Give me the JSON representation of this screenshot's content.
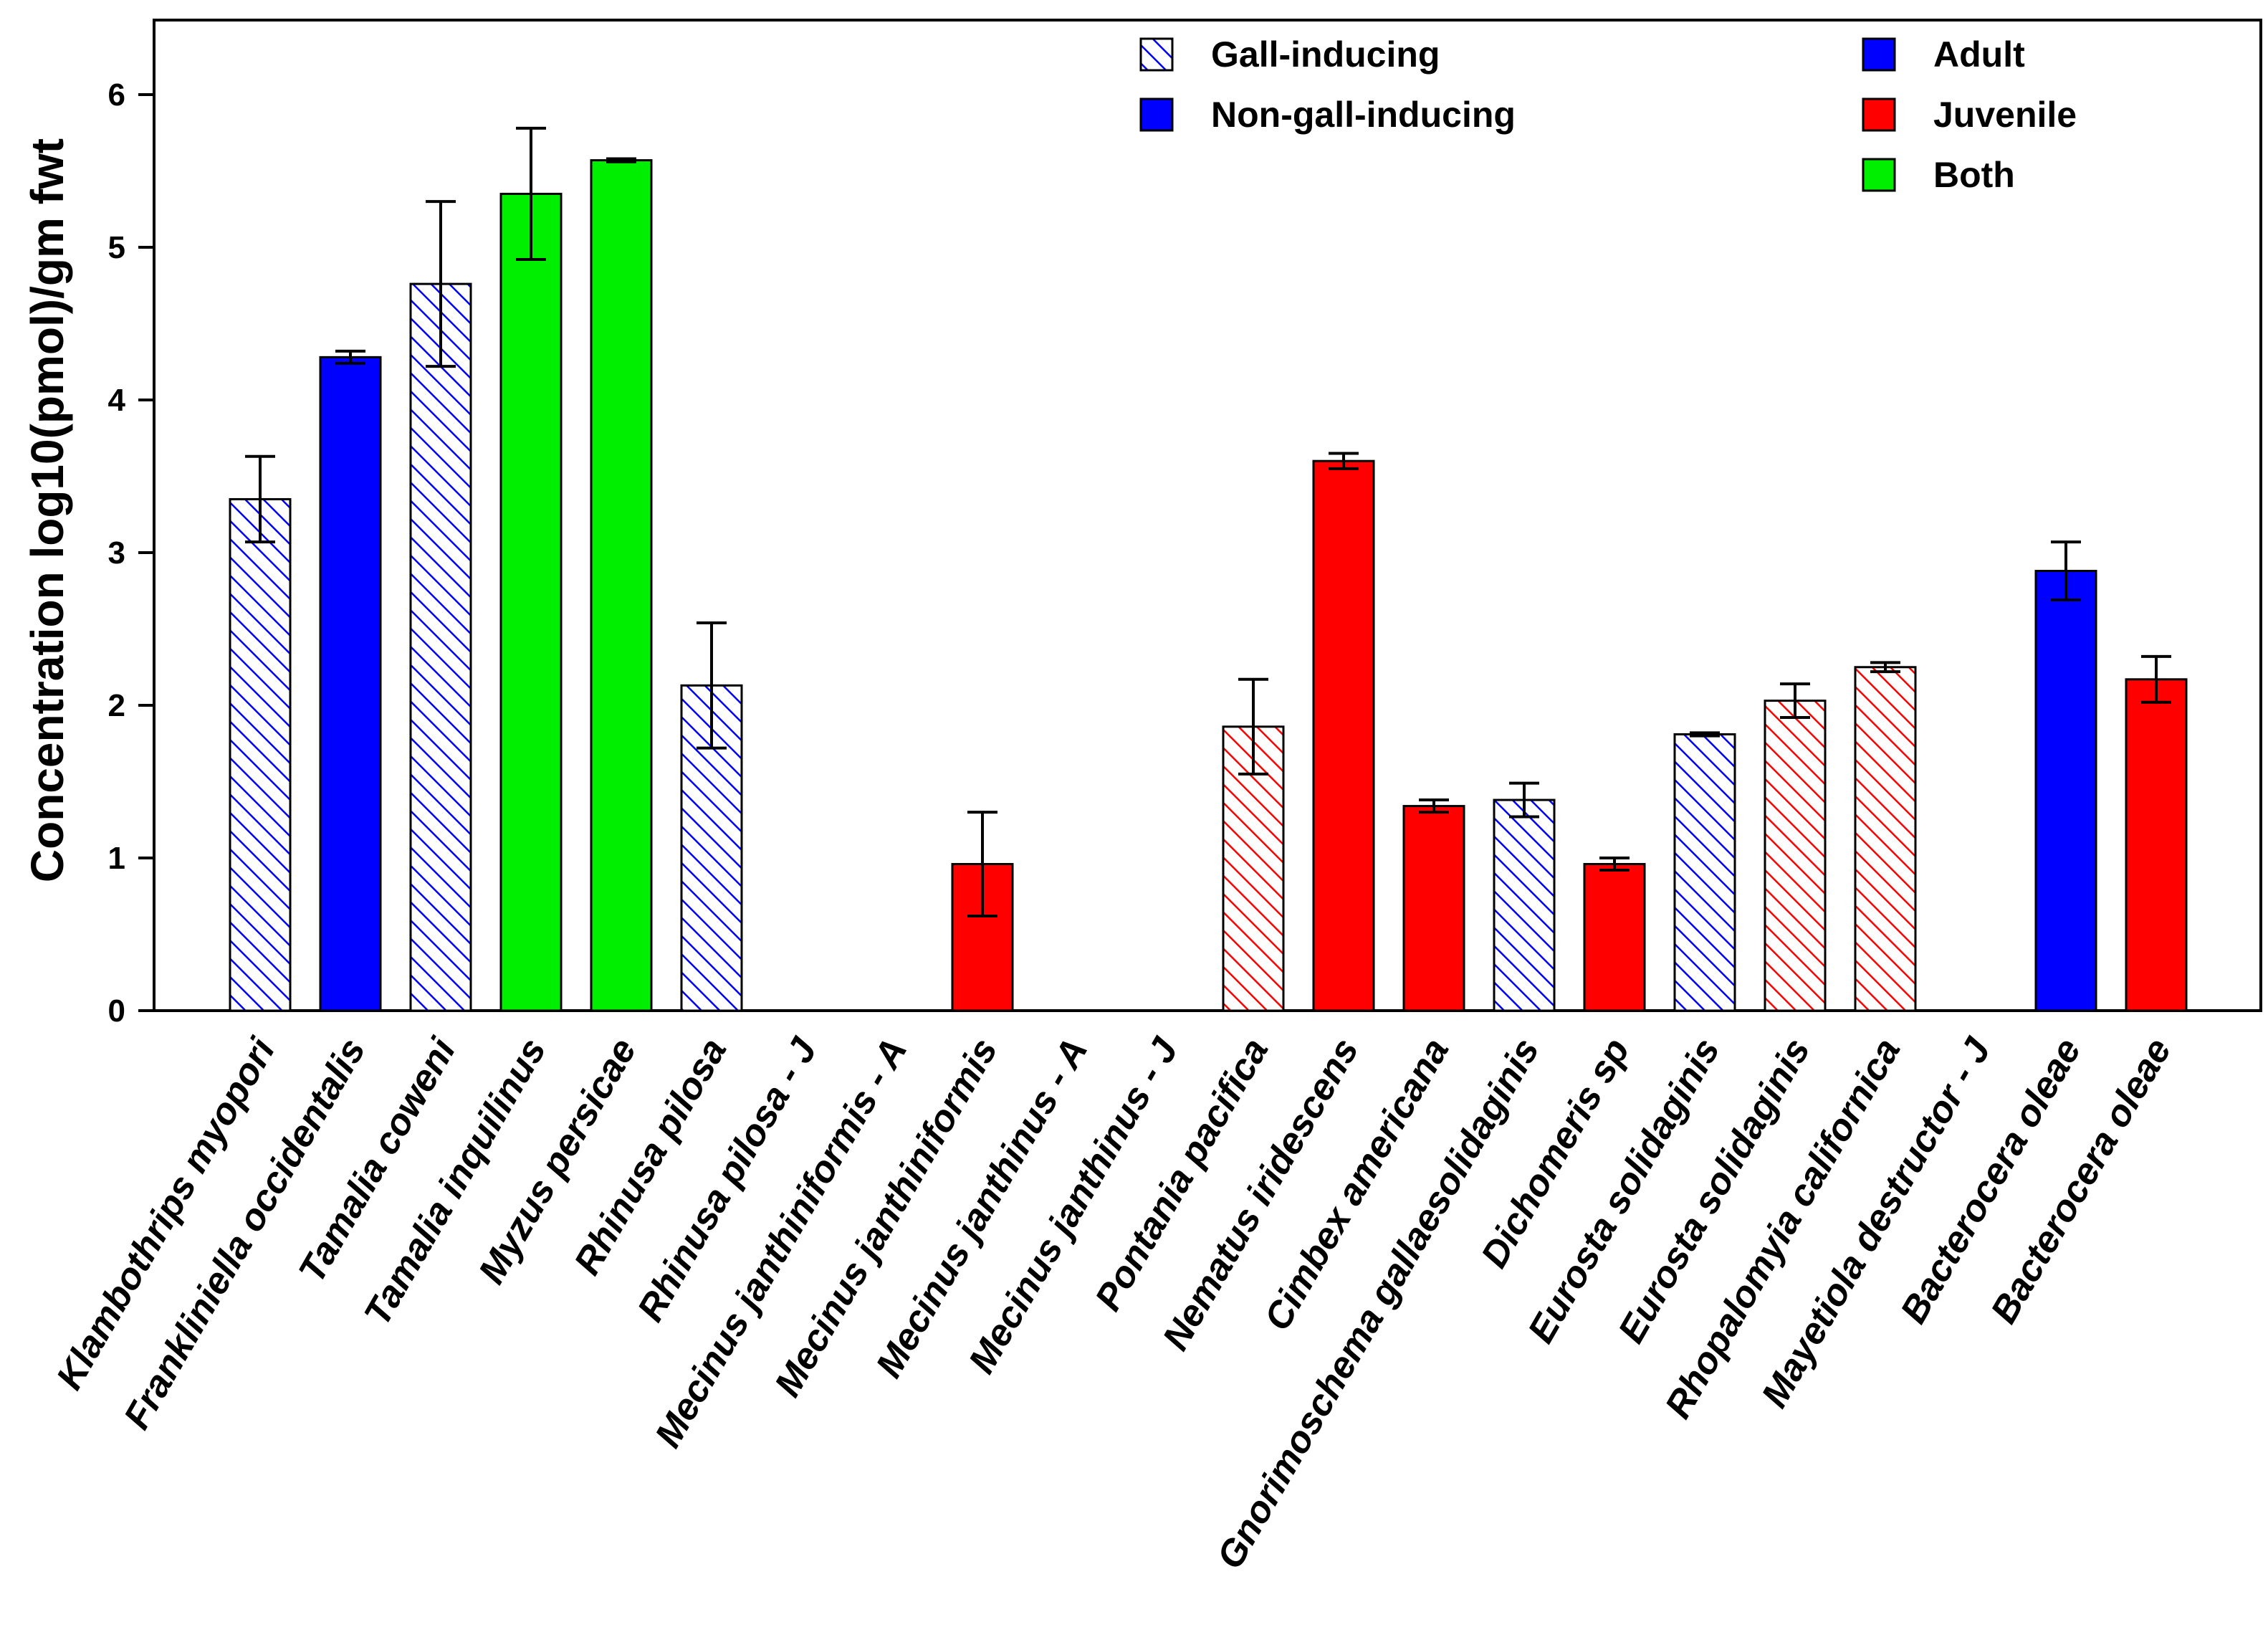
{
  "chart_data": {
    "type": "bar",
    "title": "",
    "xlabel": "",
    "ylabel": "Concentration log10(pmol)/gm fwt",
    "ylim": [
      0,
      6.5
    ],
    "yticks": [
      0,
      1,
      2,
      3,
      4,
      5,
      6
    ],
    "grid": false,
    "colors": {
      "adult": "#0000ff",
      "juvenile": "#ff0000",
      "both": "#00ee00",
      "hatch_background": "#ffffff",
      "outline": "#000000"
    },
    "legend_position": "top",
    "legend": {
      "type_entries": [
        {
          "label": "Gall-inducing",
          "style": "hatched",
          "color": "#0000ff"
        },
        {
          "label": "Non-gall-inducing",
          "style": "solid",
          "color": "#0000ff"
        }
      ],
      "stage_entries": [
        {
          "label": "Adult",
          "color": "#0000ff"
        },
        {
          "label": "Juvenile",
          "color": "#ff0000"
        },
        {
          "label": "Both",
          "color": "#00ee00"
        }
      ]
    },
    "categories": [
      "Klambothrips myopori",
      "Frankliniella occidentalis",
      "Tamalia coweni",
      "Tamalia inquilinus",
      "Myzus persicae",
      "Rhinusa pilosa",
      "Rhinusa pilosa - J",
      "Mecinus janthiniformis - A",
      "Mecinus janthiniformis",
      "Mecinus janthinus - A",
      "Mecinus janthinus - J",
      "Pontania pacifica",
      "Nematus iridescens",
      "Cimbex americana",
      "Gnorimoschema gallaesolidaginis",
      "Dichomeris sp",
      "Eurosta solidaginis",
      "Eurosta solidaginis",
      "Rhopalomyia californica",
      "Mayetiola destructor - J",
      "Bacterocera oleae",
      "Bacterocera oleae"
    ],
    "values": [
      3.35,
      4.28,
      4.76,
      5.35,
      5.57,
      2.13,
      0,
      0,
      0.96,
      0,
      0,
      1.86,
      3.6,
      1.34,
      1.38,
      0.96,
      1.81,
      2.03,
      2.25,
      0,
      2.88,
      2.17
    ],
    "errors": [
      0.28,
      0.04,
      0.54,
      0.43,
      0.01,
      0.41,
      0,
      0,
      0.34,
      0,
      0,
      0.31,
      0.05,
      0.04,
      0.11,
      0.04,
      0.01,
      0.11,
      0.03,
      0,
      0.19,
      0.15
    ],
    "stage": [
      "adult",
      "adult",
      "adult",
      "both",
      "both",
      "adult",
      "juvenile",
      "adult",
      "juvenile",
      "adult",
      "juvenile",
      "juvenile",
      "juvenile",
      "juvenile",
      "adult",
      "juvenile",
      "adult",
      "juvenile",
      "juvenile",
      "juvenile",
      "adult",
      "juvenile"
    ],
    "gall_inducing": [
      true,
      false,
      true,
      false,
      false,
      true,
      true,
      true,
      false,
      false,
      false,
      true,
      false,
      false,
      true,
      false,
      true,
      true,
      true,
      true,
      false,
      false
    ]
  }
}
